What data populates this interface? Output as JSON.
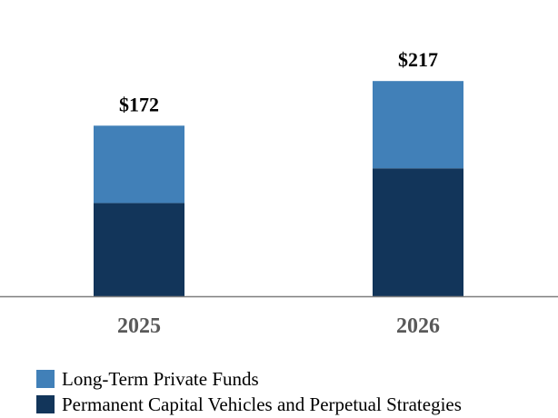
{
  "chart_data": {
    "type": "bar",
    "stacked": true,
    "categories": [
      "2025",
      "2026"
    ],
    "series": [
      {
        "name": "Permanent Capital Vehicles and Perpetual Strategies",
        "values": [
          94,
          129
        ],
        "color": "#12355a"
      },
      {
        "name": "Long-Term Private Funds",
        "values": [
          78,
          88
        ],
        "color": "#4180b8"
      }
    ],
    "totals": [
      "$172",
      "$217"
    ],
    "ylim": [
      0,
      230
    ],
    "grid": false,
    "legend_position": "bottom-left",
    "axis_color": "#7f7f7f"
  },
  "legend": {
    "items": [
      {
        "label": "Long-Term Private Funds",
        "color": "#4180b8"
      },
      {
        "label": "Permanent Capital Vehicles and Perpetual Strategies",
        "color": "#12355a"
      }
    ]
  }
}
